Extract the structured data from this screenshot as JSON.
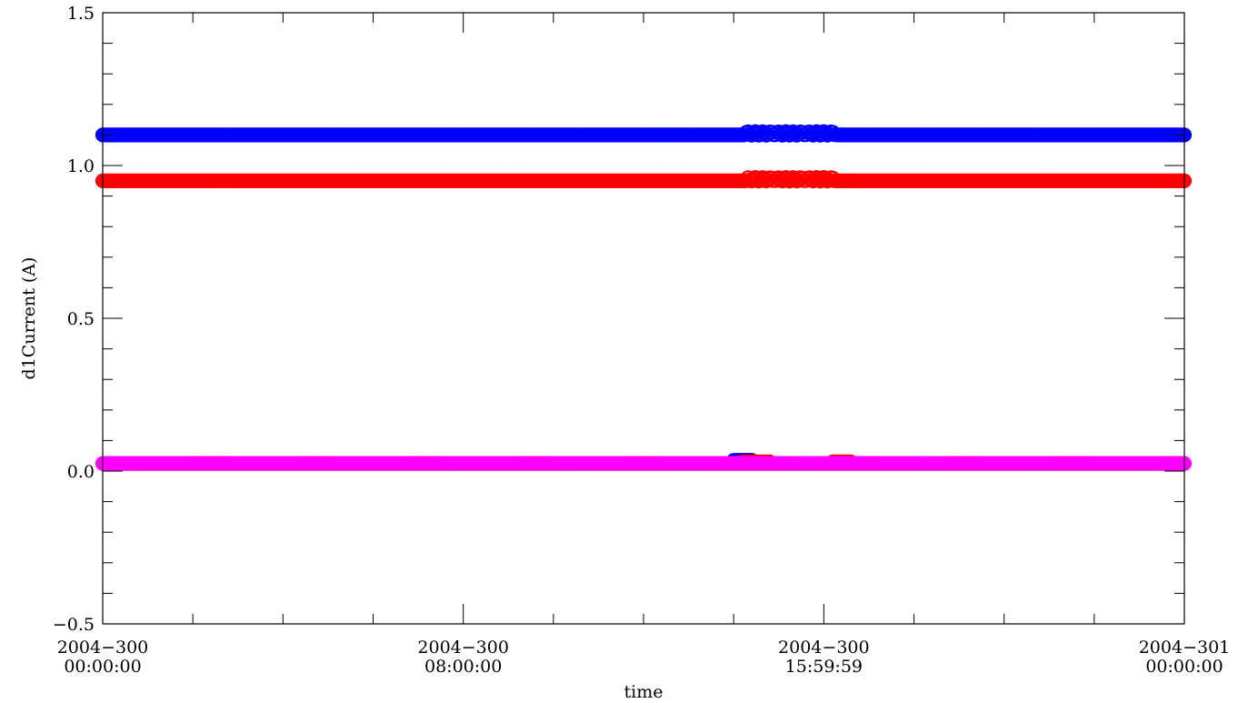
{
  "chart_data": {
    "type": "scatter",
    "title": "",
    "xlabel": "time",
    "ylabel": "d1Current (A)",
    "ylim": [
      -0.5,
      1.5
    ],
    "xlim_hours": [
      0,
      24
    ],
    "y_ticks": [
      {
        "value": -0.5,
        "label": "−0.5"
      },
      {
        "value": 0.0,
        "label": "0.0"
      },
      {
        "value": 0.5,
        "label": "0.5"
      },
      {
        "value": 1.0,
        "label": "1.0"
      },
      {
        "value": 1.5,
        "label": "1.5"
      }
    ],
    "x_ticks": [
      {
        "hour": 0,
        "line1": "2004−300",
        "line2": "00:00:00"
      },
      {
        "hour": 8,
        "line1": "2004−300",
        "line2": "08:00:00"
      },
      {
        "hour": 16,
        "line1": "2004−300",
        "line2": "15:59:59"
      },
      {
        "hour": 24,
        "line1": "2004−301",
        "line2": "00:00:00"
      }
    ],
    "x_minor_hours": [
      2,
      4,
      6,
      10,
      12,
      14,
      18,
      20,
      22
    ],
    "y_minor_step": 0.1,
    "grid": false,
    "marker": "open-circle",
    "series": [
      {
        "color": "#0000ff",
        "y": 1.1,
        "segments": [
          [
            0,
            14.2
          ],
          [
            14.2,
            16.4
          ],
          [
            16.4,
            24
          ]
        ],
        "wiggle": [
          14.2,
          16.3,
          1.105
        ]
      },
      {
        "color": "#ff0000",
        "y": 0.95,
        "segments": [
          [
            0,
            14.2
          ],
          [
            14.2,
            16.6
          ],
          [
            16.6,
            24
          ]
        ],
        "wiggle": [
          14.3,
          16.2,
          0.955
        ]
      },
      {
        "color": "#0000ff",
        "y": 0.035,
        "segments": [
          [
            14.0,
            14.4
          ]
        ]
      },
      {
        "color": "#ff0000",
        "y": 0.03,
        "segments": [
          [
            14.2,
            14.8
          ],
          [
            16.2,
            16.6
          ]
        ]
      },
      {
        "color": "#ff00ff",
        "y": 0.025,
        "segments": [
          [
            0,
            24
          ]
        ]
      }
    ]
  }
}
